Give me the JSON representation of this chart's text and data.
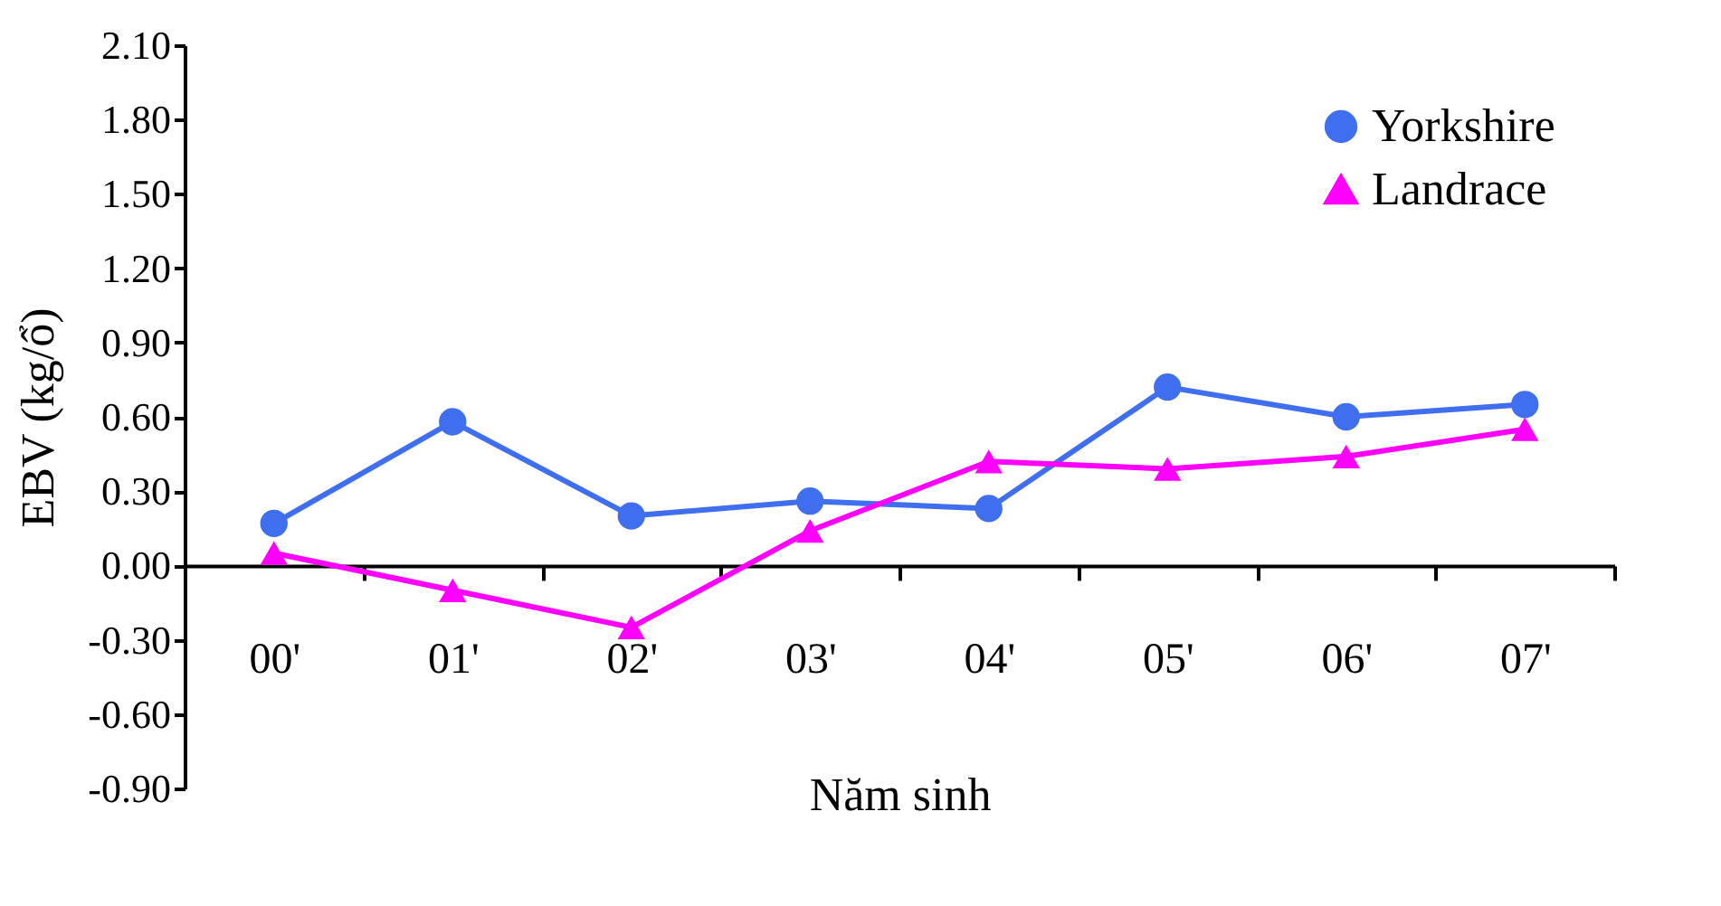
{
  "chart_data": {
    "type": "line",
    "xlabel": "Năm sinh",
    "ylabel": "EBV (kg/ổ)",
    "categories": [
      "00'",
      "01'",
      "02'",
      "03'",
      "04'",
      "05'",
      "06'",
      "07'"
    ],
    "series": [
      {
        "name": "Yorkshire",
        "color": "#3f6fef",
        "marker": "circle",
        "values": [
          0.17,
          0.58,
          0.2,
          0.26,
          0.23,
          0.72,
          0.6,
          0.65
        ]
      },
      {
        "name": "Landrace",
        "color": "#ff00ff",
        "marker": "triangle",
        "values": [
          0.05,
          -0.1,
          -0.25,
          0.14,
          0.42,
          0.39,
          0.44,
          0.55
        ]
      }
    ],
    "ylim": [
      -0.9,
      2.1
    ],
    "yticks": [
      {
        "value": -0.9,
        "label": "-0.90"
      },
      {
        "value": -0.6,
        "label": "-0.60"
      },
      {
        "value": -0.3,
        "label": "-0.30"
      },
      {
        "value": 0,
        "label": "0.00"
      },
      {
        "value": 0.3,
        "label": "0.30"
      },
      {
        "value": 0.6,
        "label": "0.60"
      },
      {
        "value": 0.9,
        "label": "0.90"
      },
      {
        "value": 1.2,
        "label": "1.20"
      },
      {
        "value": 1.5,
        "label": "1.50"
      },
      {
        "value": 1.8,
        "label": "1.80"
      },
      {
        "value": 2.1,
        "label": "2.10"
      }
    ],
    "grid": false,
    "legend": "top right",
    "line_style": "solid"
  }
}
